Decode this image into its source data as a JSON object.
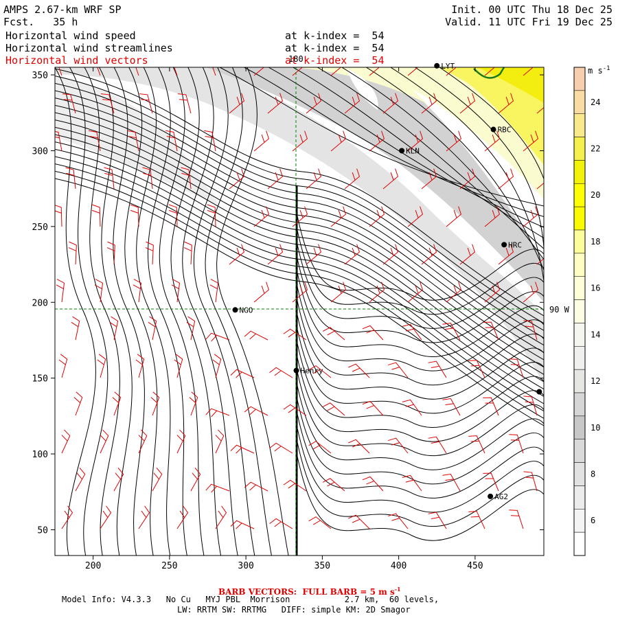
{
  "header": {
    "model": "AMPS 2.67-km WRF SP",
    "forecast": "Fcst.   35 h",
    "init": "Init. 00 UTC Thu 18 Dec 25",
    "valid": "Valid. 11 UTC Fri 19 Dec 25",
    "fields": [
      {
        "name": "Horizontal wind speed",
        "level": "at k-index =  54",
        "color": "#000000"
      },
      {
        "name": "Horizontal wind streamlines",
        "level": "at k-index =  54",
        "color": "#000000"
      },
      {
        "name": "Horizontal wind vectors",
        "level": "at k-index =  54",
        "color": "#e00000"
      }
    ]
  },
  "axes": {
    "x_ticks": [
      "200",
      "250",
      "300",
      "350",
      "400",
      "450"
    ],
    "y_ticks": [
      "350",
      "300",
      "250",
      "200",
      "150",
      "100",
      "50"
    ],
    "x_range": [
      175,
      495
    ],
    "y_range": [
      33,
      355
    ],
    "meridian_label": "180",
    "parallel_label": "90 W"
  },
  "colorbar": {
    "unit": "m s",
    "unit_exp": "-1",
    "labels": [
      "24",
      "22",
      "20",
      "18",
      "16",
      "14",
      "12",
      "10",
      "8",
      "6"
    ],
    "levels": [
      {
        "from": 25,
        "color": "#f7cfae"
      },
      {
        "from": 24,
        "color": "#f8dca4"
      },
      {
        "from": 23,
        "color": "#f8ea8a"
      },
      {
        "from": 22,
        "color": "#f5f04e"
      },
      {
        "from": 21,
        "color": "#f2f20a"
      },
      {
        "from": 20,
        "color": "#ffff00"
      },
      {
        "from": 19,
        "color": "#fafa00"
      },
      {
        "from": 18,
        "color": "#fcfc9a"
      },
      {
        "from": 17,
        "color": "#fefec2"
      },
      {
        "from": 16,
        "color": "#fefed8"
      },
      {
        "from": 15,
        "color": "#fdfde4"
      },
      {
        "from": 14,
        "color": "#f6f6f0"
      },
      {
        "from": 13,
        "color": "#f0f0ee"
      },
      {
        "from": 12,
        "color": "#e6e6e2"
      },
      {
        "from": 11,
        "color": "#d6d6d6"
      },
      {
        "from": 10,
        "color": "#c8c8c8"
      },
      {
        "from": 9,
        "color": "#dadada"
      },
      {
        "from": 8,
        "color": "#e2e2e2"
      },
      {
        "from": 7,
        "color": "#ececec"
      },
      {
        "from": 6,
        "color": "#f4f4f4"
      },
      {
        "from": 5,
        "color": "#ffffff"
      }
    ]
  },
  "stations": [
    {
      "name": "LYT",
      "x": 425,
      "y": 356
    },
    {
      "name": "RBC",
      "x": 462,
      "y": 314
    },
    {
      "name": "KLN",
      "x": 402,
      "y": 300
    },
    {
      "name": "HRC",
      "x": 469,
      "y": 238
    },
    {
      "name": "NGO",
      "x": 293,
      "y": 195
    },
    {
      "name": "Henry",
      "x": 333,
      "y": 155
    },
    {
      "name": "AG2",
      "x": 460,
      "y": 72
    },
    {
      "name": "",
      "x": 492,
      "y": 141
    }
  ],
  "footer": {
    "barb_note": "BARB VECTORS:  FULL BARB = 5 m s",
    "barb_exp": "-1",
    "line1": "Model Info: V4.3.3   No Cu   MYJ PBL  Morrison           2.7 km,  60 levels,",
    "line2": "LW: RRTM SW: RRTMG   DIFF: simple KM: 2D Smagor"
  },
  "colors": {
    "barb": "#e00000",
    "grid": "#008000",
    "streamline": "#000000",
    "contour": "#1a7a1a"
  }
}
